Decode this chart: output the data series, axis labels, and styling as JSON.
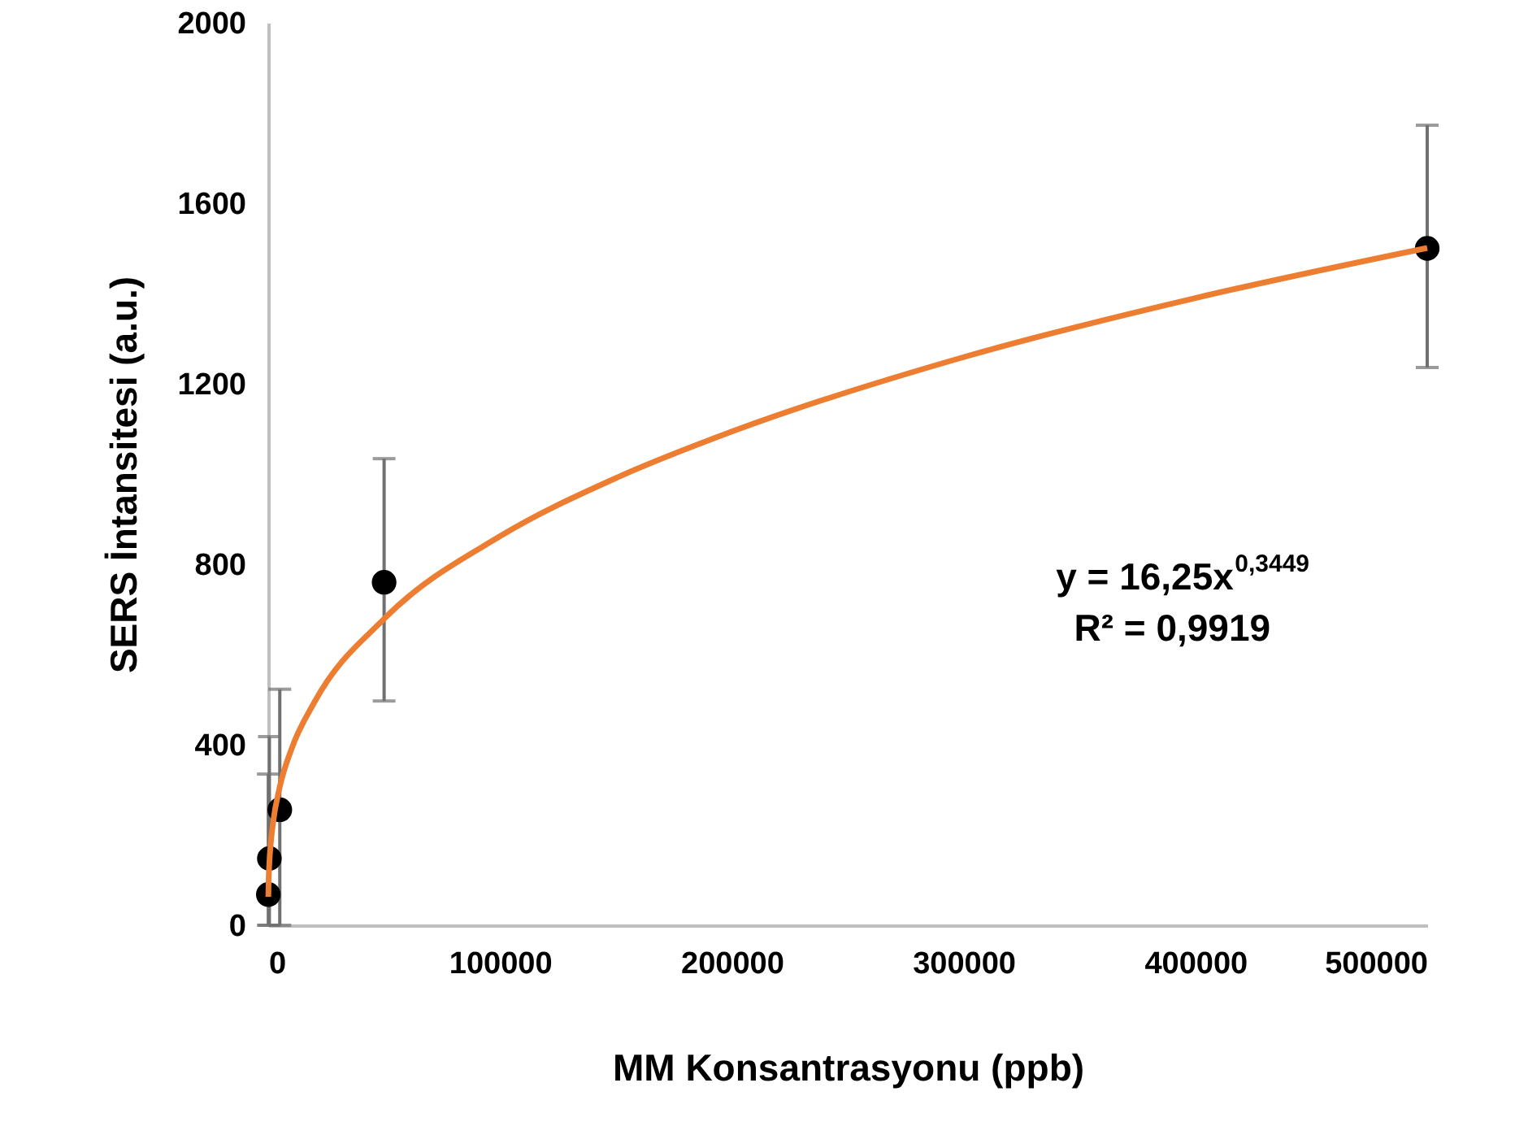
{
  "chart_data": {
    "type": "scatter",
    "xlabel": "MM Konsantrasyonu (ppb)",
    "ylabel": "SERS İntansitesi (a.u.)",
    "x": [
      50,
      500,
      5000,
      50000,
      500000
    ],
    "xlim": [
      0,
      500000
    ],
    "xticks": [
      0,
      100000,
      200000,
      300000,
      400000,
      500000
    ],
    "ylim": [
      0,
      2000
    ],
    "yticks": [
      0,
      400,
      800,
      1200,
      1600,
      2000
    ],
    "marker": "circle",
    "annotations": [
      "y = 16,25x$^{0,3449}$",
      "R² = 0,9919"
    ],
    "series": [
      {
        "color": "#000000",
        "values": [
          68,
          148,
          256,
          760,
          1500
        ],
        "errors": [
          [
            0,
            335
          ],
          [
            0,
            418
          ],
          [
            0,
            523
          ],
          [
            497,
            1034
          ],
          [
            1236,
            1773
          ]
        ]
      },
      {
        "type": "line",
        "color": "#ed7d31",
        "marker": "none",
        "x": [
          50,
          200,
          500,
          1000,
          2000,
          5000,
          10000,
          20000,
          50000,
          100000,
          150000,
          200000,
          300000,
          400000,
          500000
        ],
        "values": [
          63,
          101,
          139,
          176,
          224,
          307,
          390,
          495,
          679,
          862,
          991,
          1094,
          1259,
          1390,
          1501
        ]
      }
    ]
  }
}
